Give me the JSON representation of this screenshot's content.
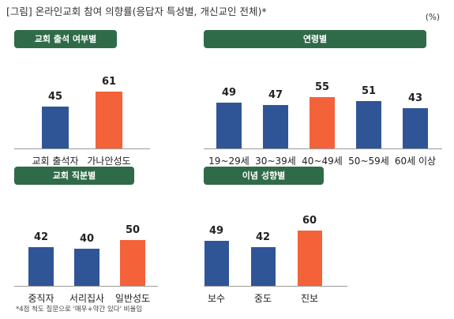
{
  "header": {
    "title": "[그림] 온라인교회 참여 의향률(응답자 특성별, 개신교인 전체)*",
    "unit": "(%)"
  },
  "footnote": "*4점 척도 질문으로 '매우+약간 있다' 비율임",
  "colors": {
    "default": "#2f5597",
    "highlight": "#f4623a",
    "pill": "#2f6b48",
    "axis": "#9a9a9a"
  },
  "chart_data": [
    {
      "type": "bar",
      "title": "교회 출석 여부별",
      "categories": [
        "교회 출석자",
        "가나안성도"
      ],
      "values": [
        45,
        61
      ],
      "highlight": [
        false,
        true
      ],
      "ylim": [
        0,
        100
      ],
      "grid": false
    },
    {
      "type": "bar",
      "title": "연령별",
      "categories": [
        "19~29세",
        "30~39세",
        "40~49세",
        "50~59세",
        "60세 이상"
      ],
      "values": [
        49,
        47,
        55,
        51,
        43
      ],
      "highlight": [
        false,
        false,
        true,
        false,
        false
      ],
      "ylim": [
        0,
        100
      ],
      "grid": false
    },
    {
      "type": "bar",
      "title": "교회 직분별",
      "categories": [
        "중직자",
        "서리집사",
        "일반성도"
      ],
      "values": [
        42,
        40,
        50
      ],
      "highlight": [
        false,
        false,
        true
      ],
      "ylim": [
        0,
        100
      ],
      "grid": false
    },
    {
      "type": "bar",
      "title": "이념 성향별",
      "categories": [
        "보수",
        "중도",
        "진보"
      ],
      "values": [
        49,
        42,
        60
      ],
      "highlight": [
        false,
        false,
        true
      ],
      "ylim": [
        0,
        100
      ],
      "grid": false
    }
  ]
}
